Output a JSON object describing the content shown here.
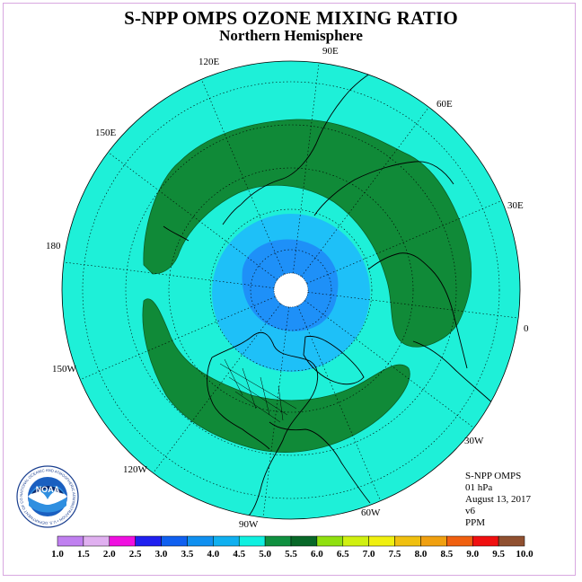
{
  "title": "S-NPP OMPS OZONE MIXING RATIO",
  "subtitle": "Northern Hemisphere",
  "longitude_labels": {
    "lon_90e": "90E",
    "lon_60e": "60E",
    "lon_30e": "30E",
    "lon_0": "0",
    "lon_30w": "30W",
    "lon_60w": "60W",
    "lon_90w": "90W",
    "lon_120w": "120W",
    "lon_150w": "150W",
    "lon_180": "180",
    "lon_150e": "150E",
    "lon_120e": "120E"
  },
  "info": {
    "instrument": "S-NPP OMPS",
    "level": "01 hPa",
    "date": "August 13, 2017",
    "version": "v6",
    "units": "PPM"
  },
  "logo": {
    "text": "NOAA",
    "ring_text": "NATIONAL OCEANIC AND ATMOSPHERIC ADMINISTRATION • U.S. DEPARTMENT OF COMMERCE •"
  },
  "colors": {
    "low_band": "#1ef0d8",
    "mid_band": "#1ec0f8",
    "inner_band": "#1e90f8",
    "high_band": "#108a38",
    "no_data": "#ffffff",
    "frame": "#d8a8e0"
  },
  "colorbar": {
    "labels": [
      "1.0",
      "1.5",
      "2.0",
      "2.5",
      "3.0",
      "3.5",
      "4.0",
      "4.5",
      "5.0",
      "5.5",
      "6.0",
      "6.5",
      "7.0",
      "7.5",
      "8.0",
      "8.5",
      "9.0",
      "9.5",
      "10.0"
    ],
    "colors": [
      "#c080f0",
      "#e0b0f0",
      "#f010e0",
      "#2020f0",
      "#1060f0",
      "#1090f0",
      "#10b0f0",
      "#10f0e0",
      "#109040",
      "#086828",
      "#90e010",
      "#d0f010",
      "#f0f010",
      "#f0c010",
      "#f0a010",
      "#f06010",
      "#f01010",
      "#905030"
    ]
  }
}
